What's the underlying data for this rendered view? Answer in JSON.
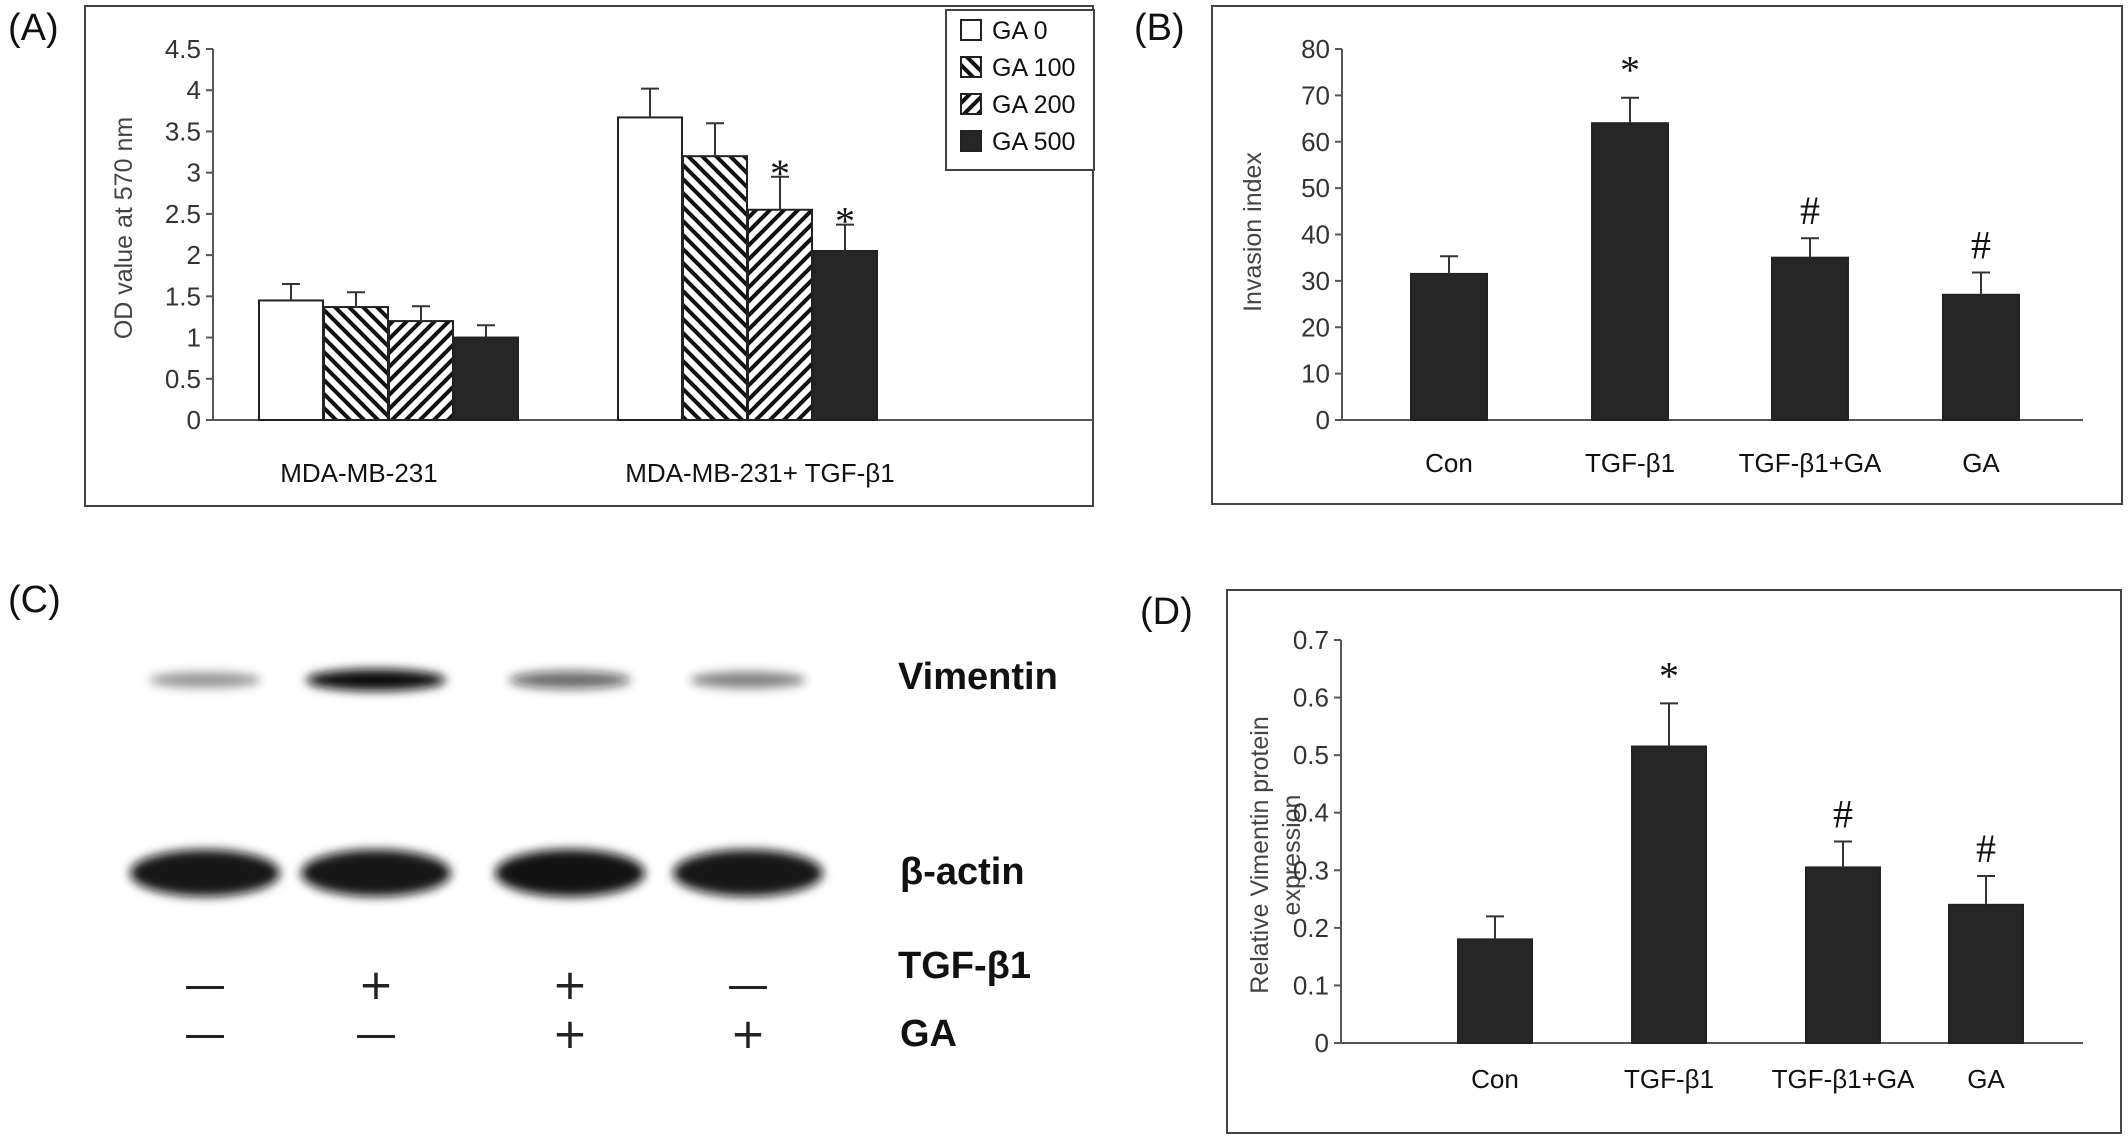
{
  "panels": {
    "A": "(A)",
    "B": "(B)",
    "C": "(C)",
    "D": "(D)"
  },
  "chart_data": [
    {
      "id": "A",
      "type": "bar",
      "ylabel": "OD value at 570 nm",
      "ylim": [
        0,
        4.5
      ],
      "yticks": [
        "0",
        "0.5",
        "1",
        "1.5",
        "2",
        "2.5",
        "3",
        "3.5",
        "4",
        "4.5"
      ],
      "categories": [
        "MDA-MB-231",
        "MDA-MB-231+ TGF-β1"
      ],
      "series": [
        {
          "name": "GA 0",
          "pattern": "white",
          "values": [
            1.45,
            3.67
          ],
          "errors": [
            0.2,
            0.35
          ],
          "marks": [
            "",
            ""
          ]
        },
        {
          "name": "GA 100",
          "pattern": "backslash",
          "values": [
            1.37,
            3.2
          ],
          "errors": [
            0.18,
            0.4
          ],
          "marks": [
            "",
            ""
          ]
        },
        {
          "name": "GA 200",
          "pattern": "slash",
          "values": [
            1.2,
            2.55
          ],
          "errors": [
            0.18,
            0.4
          ],
          "marks": [
            "",
            "*"
          ]
        },
        {
          "name": "GA 500",
          "pattern": "black",
          "values": [
            1.0,
            2.05
          ],
          "errors": [
            0.15,
            0.32
          ],
          "marks": [
            "",
            "*"
          ]
        }
      ],
      "legend_position": "top-right",
      "grid": false
    },
    {
      "id": "B",
      "type": "bar",
      "ylabel": "Invasion index",
      "ylim": [
        0,
        80
      ],
      "yticks": [
        "0",
        "10",
        "20",
        "30",
        "40",
        "50",
        "60",
        "70",
        "80"
      ],
      "categories": [
        "Con",
        "TGF-β1",
        "TGF-β1+GA",
        "GA"
      ],
      "values": [
        31.5,
        64,
        35,
        27
      ],
      "errors": [
        3.8,
        5.5,
        4.2,
        4.8
      ],
      "marks": [
        "",
        "*",
        "#",
        "#"
      ],
      "grid": false
    },
    {
      "id": "D",
      "type": "bar",
      "ylabel": "Relative Vimentin protein expression",
      "ylabel_lines": [
        "Relative Vimentin protein",
        "expression"
      ],
      "ylim": [
        0,
        0.7
      ],
      "yticks": [
        "0",
        "0.1",
        "0.2",
        "0.3",
        "0.4",
        "0.5",
        "0.6",
        "0.7"
      ],
      "categories": [
        "Con",
        "TGF-β1",
        "TGF-β1+GA",
        "GA"
      ],
      "values": [
        0.18,
        0.515,
        0.305,
        0.24
      ],
      "errors": [
        0.04,
        0.075,
        0.045,
        0.05
      ],
      "marks": [
        "",
        "*",
        "#",
        "#"
      ],
      "grid": false
    }
  ],
  "blot": {
    "bands": [
      {
        "name": "Vimentin",
        "intensities": [
          0.3,
          1.0,
          0.55,
          0.4
        ]
      },
      {
        "name": "β-actin",
        "intensities": [
          0.95,
          0.95,
          0.98,
          0.95
        ]
      }
    ],
    "treatments": [
      {
        "name": "TGF-β1",
        "signs": [
          "—",
          "+",
          "+",
          "—"
        ]
      },
      {
        "name": "GA",
        "signs": [
          "—",
          "—",
          "+",
          "+"
        ]
      }
    ]
  },
  "colors": {
    "bar": "#262626",
    "axis": "#555555",
    "frame": "#444444",
    "band": "#0d0d0d"
  }
}
